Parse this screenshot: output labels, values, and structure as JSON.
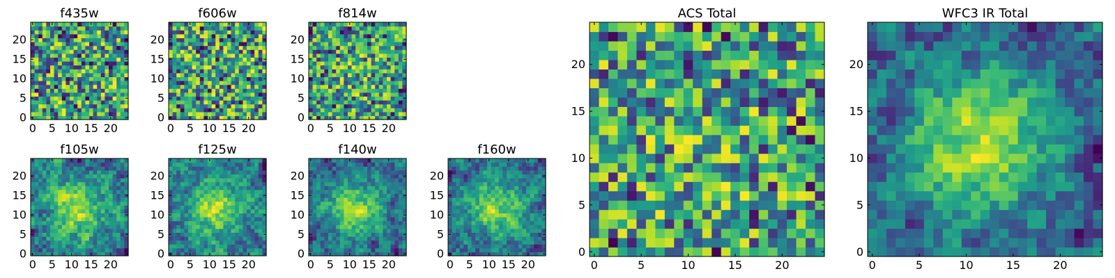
{
  "figure": {
    "colormap": "viridis",
    "colors": {
      "low": "#440154",
      "mid": "#21918c",
      "high": "#fde725",
      "axis": "#000000",
      "background": "#ffffff"
    }
  },
  "chart_data": [
    {
      "type": "heatmap",
      "title": "f435w",
      "xlim": [
        0,
        25
      ],
      "ylim": [
        0,
        25
      ],
      "xticks": [
        0,
        5,
        10,
        15,
        20
      ],
      "yticks": [
        0,
        5,
        10,
        15,
        20
      ],
      "grid": false,
      "size": 25,
      "peak": 0,
      "seed": 11
    },
    {
      "type": "heatmap",
      "title": "f606w",
      "xlim": [
        0,
        25
      ],
      "ylim": [
        0,
        25
      ],
      "xticks": [
        0,
        5,
        10,
        15,
        20
      ],
      "yticks": [
        0,
        5,
        10,
        15,
        20
      ],
      "grid": false,
      "size": 25,
      "peak": 0,
      "seed": 23
    },
    {
      "type": "heatmap",
      "title": "f814w",
      "xlim": [
        0,
        25
      ],
      "ylim": [
        0,
        25
      ],
      "xticks": [
        0,
        5,
        10,
        15,
        20
      ],
      "yticks": [
        0,
        5,
        10,
        15,
        20
      ],
      "grid": false,
      "size": 25,
      "peak": 0.1,
      "seed": 37
    },
    {
      "type": "heatmap",
      "title": "f105w",
      "xlim": [
        0,
        25
      ],
      "ylim": [
        0,
        25
      ],
      "xticks": [
        0,
        5,
        10,
        15,
        20
      ],
      "yticks": [
        0,
        5,
        10,
        15,
        20
      ],
      "grid": false,
      "size": 25,
      "peak": 0.45,
      "seed": 41
    },
    {
      "type": "heatmap",
      "title": "f125w",
      "xlim": [
        0,
        25
      ],
      "ylim": [
        0,
        25
      ],
      "xticks": [
        0,
        5,
        10,
        15,
        20
      ],
      "yticks": [
        0,
        5,
        10,
        15,
        20
      ],
      "grid": false,
      "size": 25,
      "peak": 0.45,
      "seed": 53
    },
    {
      "type": "heatmap",
      "title": "f140w",
      "xlim": [
        0,
        25
      ],
      "ylim": [
        0,
        25
      ],
      "xticks": [
        0,
        5,
        10,
        15,
        20
      ],
      "yticks": [
        0,
        5,
        10,
        15,
        20
      ],
      "grid": false,
      "size": 25,
      "peak": 0.5,
      "seed": 67
    },
    {
      "type": "heatmap",
      "title": "f160w",
      "xlim": [
        0,
        25
      ],
      "ylim": [
        0,
        25
      ],
      "xticks": [
        0,
        5,
        10,
        15,
        20
      ],
      "yticks": [
        0,
        5,
        10,
        15,
        20
      ],
      "grid": false,
      "size": 25,
      "peak": 0.5,
      "seed": 79
    },
    {
      "type": "heatmap",
      "title": "ACS Total",
      "xlim": [
        0,
        25
      ],
      "ylim": [
        0,
        25
      ],
      "xticks": [
        0,
        5,
        10,
        15,
        20
      ],
      "yticks": [
        0,
        5,
        10,
        15,
        20
      ],
      "grid": false,
      "size": 25,
      "peak": 0.1,
      "seed": 97
    },
    {
      "type": "heatmap",
      "title": "WFC3 IR Total",
      "xlim": [
        0,
        25
      ],
      "ylim": [
        0,
        25
      ],
      "xticks": [
        0,
        5,
        10,
        15,
        20
      ],
      "yticks": [
        0,
        5,
        10,
        15,
        20
      ],
      "grid": false,
      "size": 25,
      "peak": 0.6,
      "seed": 113
    }
  ]
}
